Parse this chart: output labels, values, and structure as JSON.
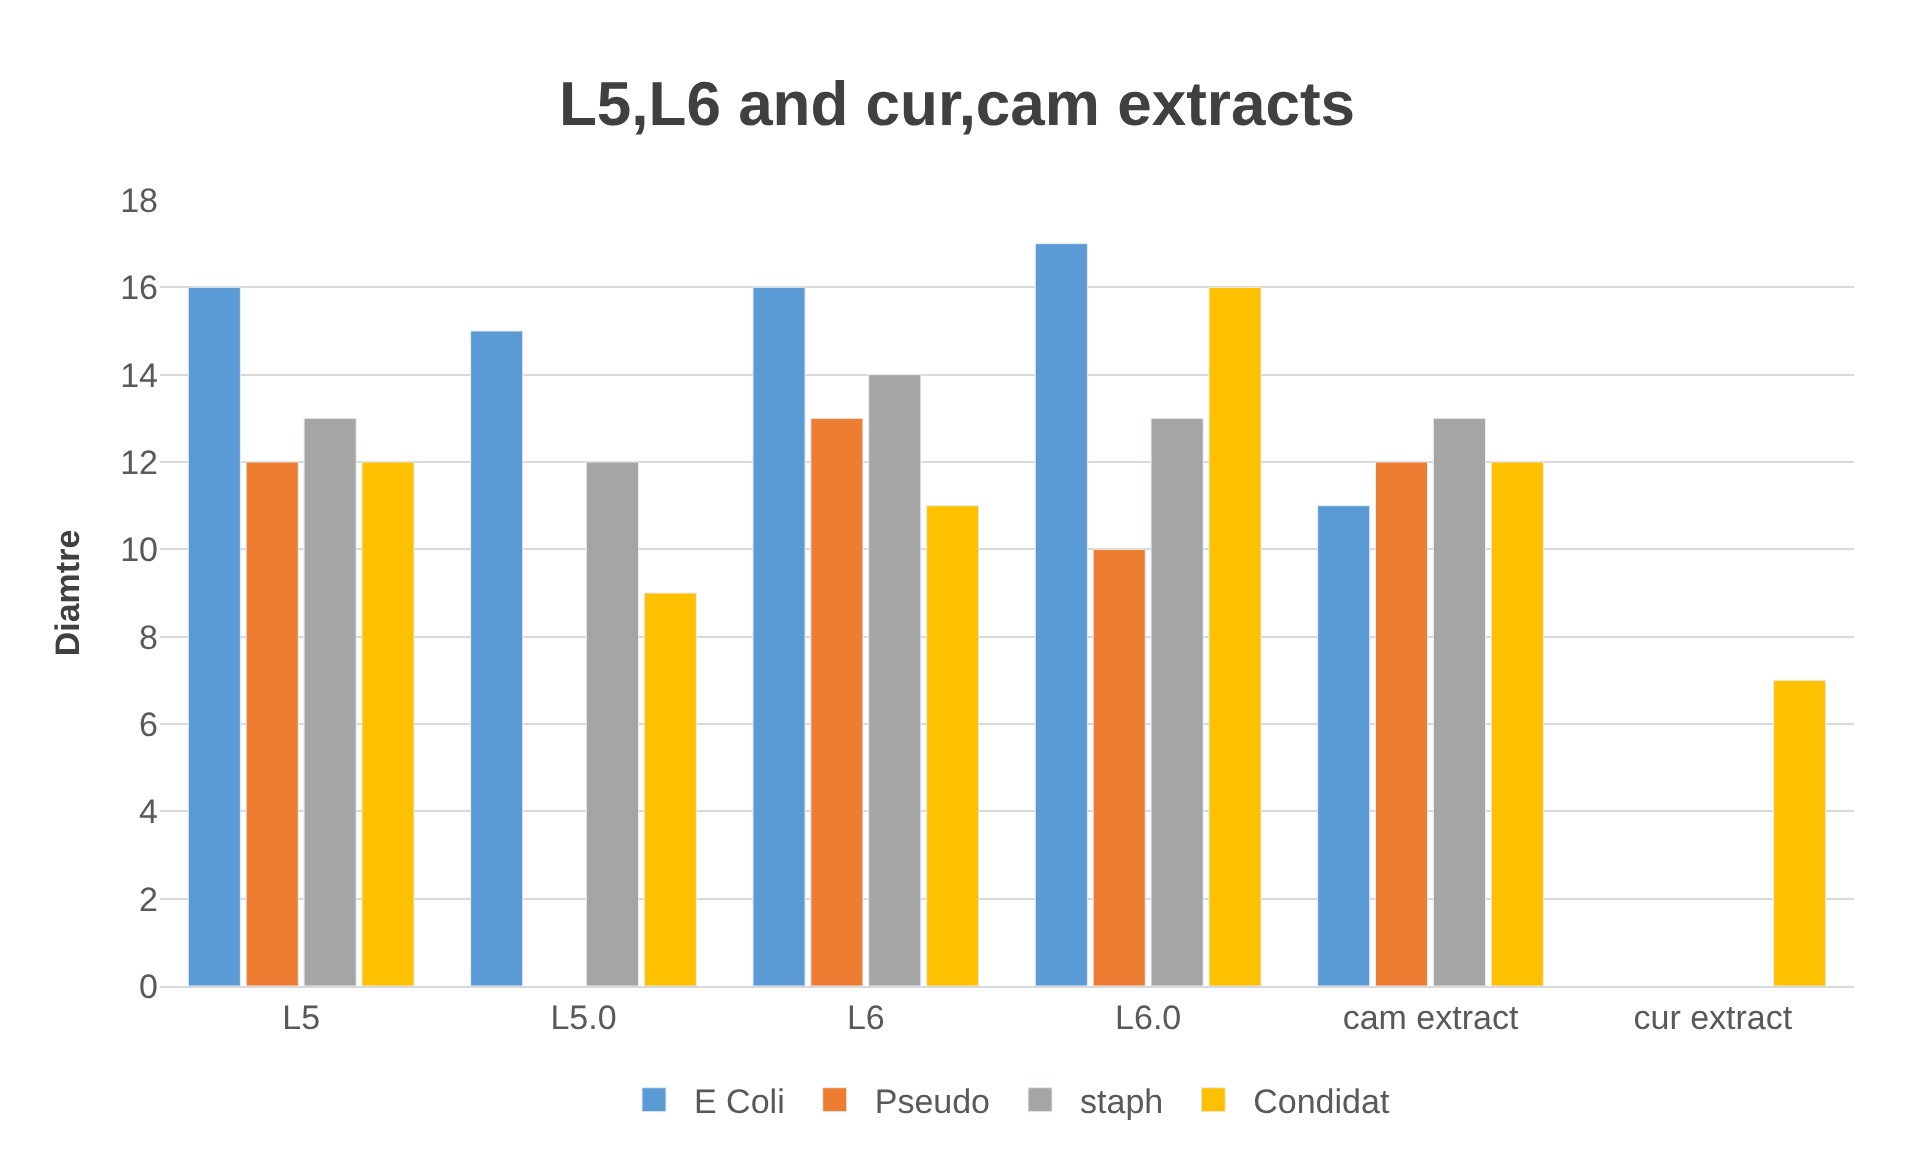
{
  "chart_data": {
    "type": "bar",
    "title": "L5,L6 and cur,cam extracts",
    "ylabel": "Diamtre",
    "categories": [
      "L5",
      "L5.0",
      "L6",
      "L6.0",
      "cam extract",
      "cur extract"
    ],
    "series": [
      {
        "name": "E Coli",
        "color": "#5b9bd5",
        "values": [
          16,
          15,
          16,
          17,
          11,
          null
        ]
      },
      {
        "name": "Pseudo",
        "color": "#ed7d31",
        "values": [
          12,
          null,
          13,
          10,
          12,
          null
        ]
      },
      {
        "name": "staph",
        "color": "#a5a5a5",
        "values": [
          13,
          12,
          14,
          13,
          13,
          null
        ]
      },
      {
        "name": "Condidat",
        "color": "#ffc000",
        "values": [
          12,
          9,
          11,
          16,
          12,
          7
        ]
      }
    ],
    "ylim": [
      0,
      18
    ],
    "yticks": [
      0,
      2,
      4,
      6,
      8,
      10,
      12,
      14,
      16,
      18
    ],
    "grid": "y",
    "legend": "bottom"
  }
}
